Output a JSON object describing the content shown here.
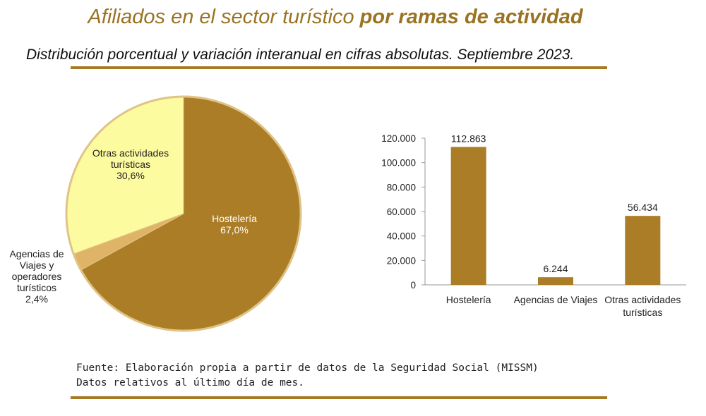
{
  "title": {
    "regular": "Afiliados en el sector turístico ",
    "bold": "por ramas de actividad"
  },
  "subtitle": "Distribución porcentual y variación interanual en cifras absolutas. Septiembre 2023.",
  "footer": {
    "source_line": "Fuente: Elaboración propia a partir de datos de la Seguridad Social (MISSM)",
    "note_line": "Datos relativos al último día de mes."
  },
  "colors": {
    "accent": "#a87a24",
    "title": "#9a7322",
    "hosteleria": "#ab7d27",
    "agencias": "#dfb466",
    "otras": "#fdfb9f",
    "pie_border": "#e0c386"
  },
  "chart_data": [
    {
      "type": "pie",
      "slices": [
        {
          "label_lines": [
            "Hostelería"
          ],
          "value_label": "67,0%",
          "value": 67.0
        },
        {
          "label_lines": [
            "Agencias de",
            "Viajes y",
            "operadores",
            "turísticos"
          ],
          "value_label": "2,4%",
          "value": 2.4
        },
        {
          "label_lines": [
            "Otras actividades",
            "turísticas"
          ],
          "value_label": "30,6%",
          "value": 30.6
        }
      ]
    },
    {
      "type": "bar",
      "categories": [
        {
          "label_lines": [
            "Hostelería"
          ]
        },
        {
          "label_lines": [
            "Agencias de Viajes"
          ]
        },
        {
          "label_lines": [
            "Otras actividades",
            "turísticas"
          ]
        }
      ],
      "values": [
        112863,
        6244,
        56434
      ],
      "value_labels": [
        "112.863",
        "6.244",
        "56.434"
      ],
      "ylim": [
        0,
        120000
      ],
      "yticks": [
        0,
        20000,
        40000,
        60000,
        80000,
        100000,
        120000
      ],
      "ytick_labels": [
        "0",
        "20.000",
        "40.000",
        "60.000",
        "80.000",
        "100.000",
        "120.000"
      ],
      "grid": false,
      "bar_color": "#ab7d27"
    }
  ]
}
